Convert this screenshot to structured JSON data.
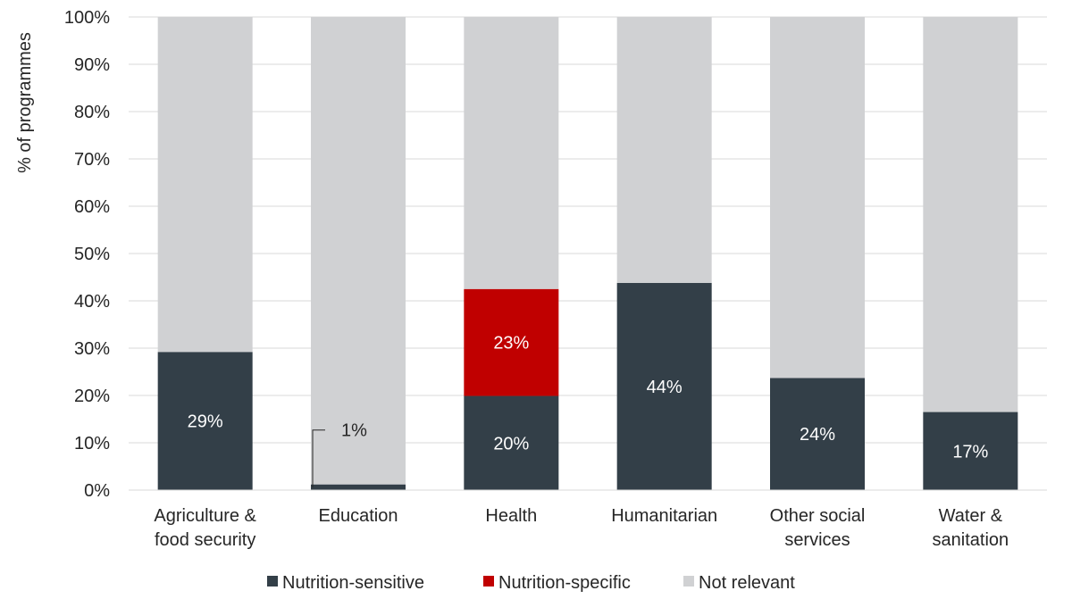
{
  "chart_data": {
    "type": "bar",
    "stacked": true,
    "ylabel": "% of programmes",
    "ylim": [
      0,
      100
    ],
    "yticks": [
      0,
      10,
      20,
      30,
      40,
      50,
      60,
      70,
      80,
      90,
      100
    ],
    "ytick_labels": [
      "0%",
      "10%",
      "20%",
      "30%",
      "40%",
      "50%",
      "60%",
      "70%",
      "80%",
      "90%",
      "100%"
    ],
    "grid": true,
    "legend_position": "bottom",
    "categories": [
      [
        "Agriculture &",
        "food security"
      ],
      [
        "Education"
      ],
      [
        "Health"
      ],
      [
        "Humanitarian"
      ],
      [
        "Other social",
        "services"
      ],
      [
        "Water &",
        "sanitation"
      ]
    ],
    "series": [
      {
        "name": "Nutrition-sensitive",
        "color": "#333f48",
        "label_color": "#ffffff",
        "values": [
          29,
          1,
          20,
          44,
          24,
          17
        ],
        "labels": [
          "29%",
          "1%",
          "20%",
          "44%",
          "24%",
          "17%"
        ],
        "stack_values": [
          29.2,
          1.2,
          19.9,
          43.8,
          23.7,
          16.5
        ]
      },
      {
        "name": "Nutrition-specific",
        "color": "#c00000",
        "label_color": "#ffffff",
        "values": [
          0,
          0,
          23,
          0,
          0,
          0
        ],
        "labels": [
          "",
          "",
          "23%",
          "",
          "",
          ""
        ],
        "stack_values": [
          0,
          0,
          22.6,
          0,
          0,
          0
        ]
      },
      {
        "name": "Not relevant",
        "color": "#d0d1d3",
        "label_color": "#262626",
        "values": [
          71,
          99,
          57,
          56,
          76,
          83
        ],
        "labels": [
          "",
          "",
          "",
          "",
          "",
          ""
        ],
        "stack_values": [
          70.8,
          98.8,
          57.5,
          56.2,
          76.3,
          83.5
        ]
      }
    ]
  }
}
